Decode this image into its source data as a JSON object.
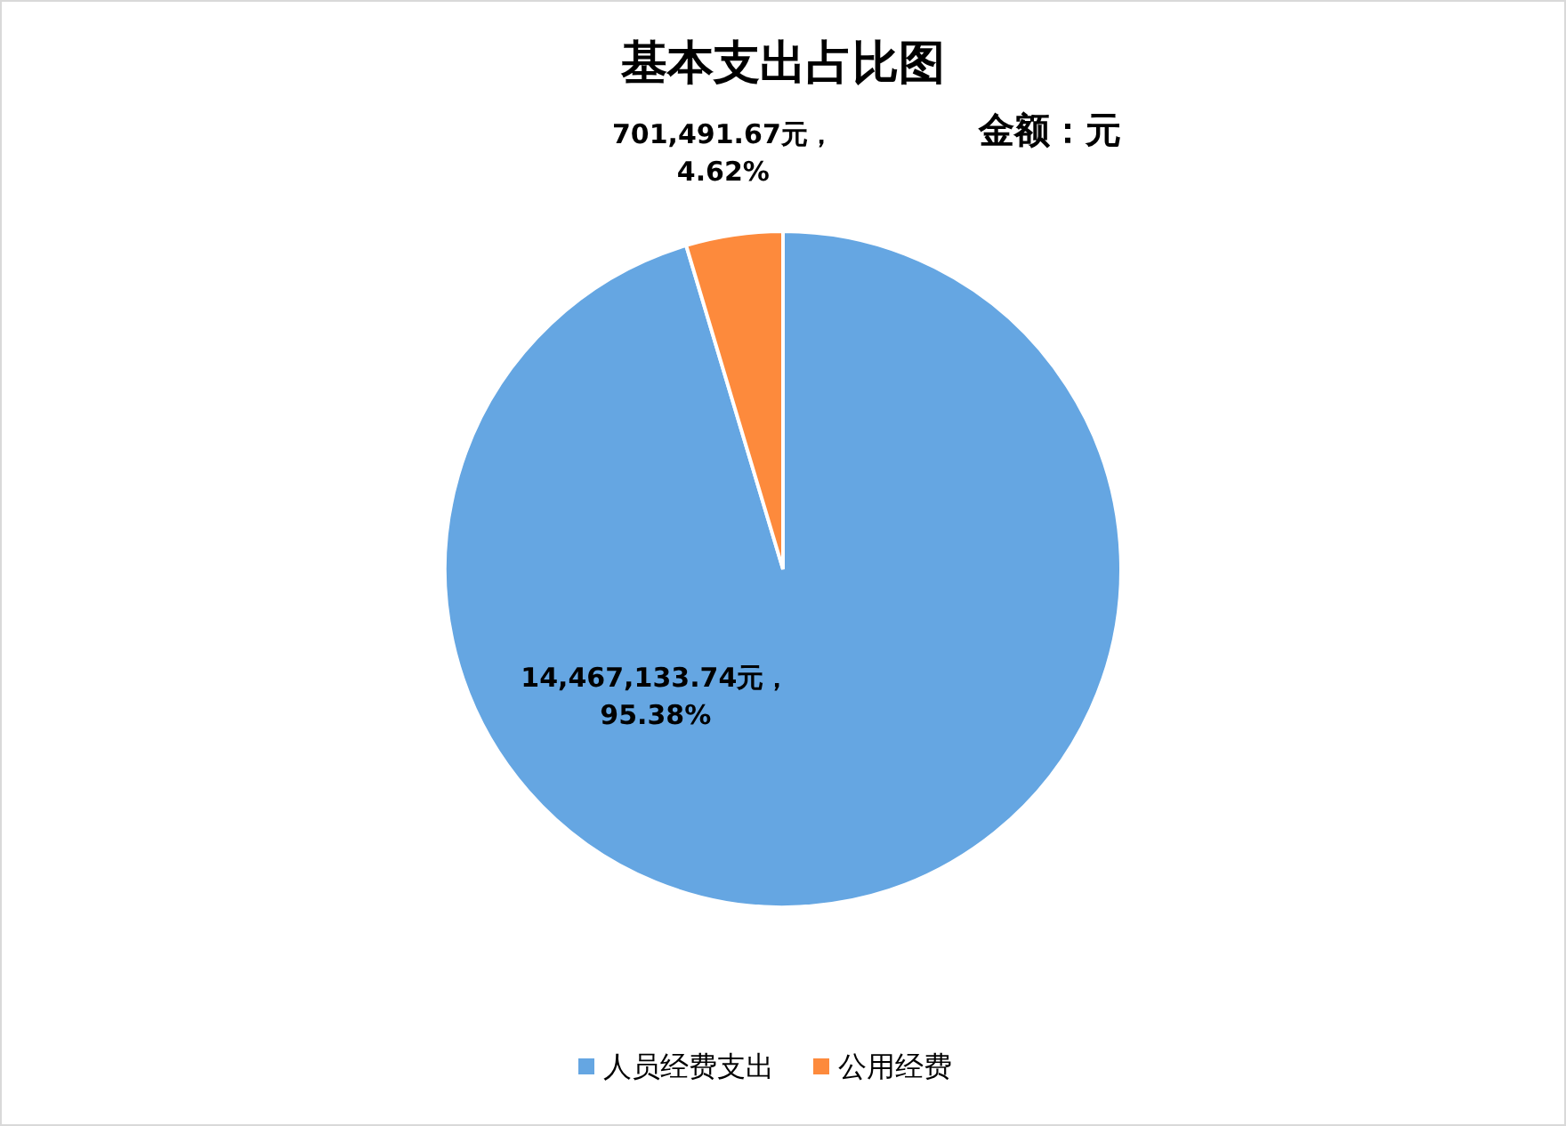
{
  "chart_data": {
    "type": "pie",
    "title": "基本支出占比图",
    "subtitle": "金额：元",
    "categories": [
      "人员经费支出",
      "公用经费"
    ],
    "values": [
      14467133.74,
      701491.67
    ],
    "colors": [
      "#65a6e2",
      "#fd8a3c"
    ],
    "value_labels": [
      "14,467,133.74元，95.38%",
      "701,491.67元，4.62%"
    ],
    "legend": "bottom"
  }
}
